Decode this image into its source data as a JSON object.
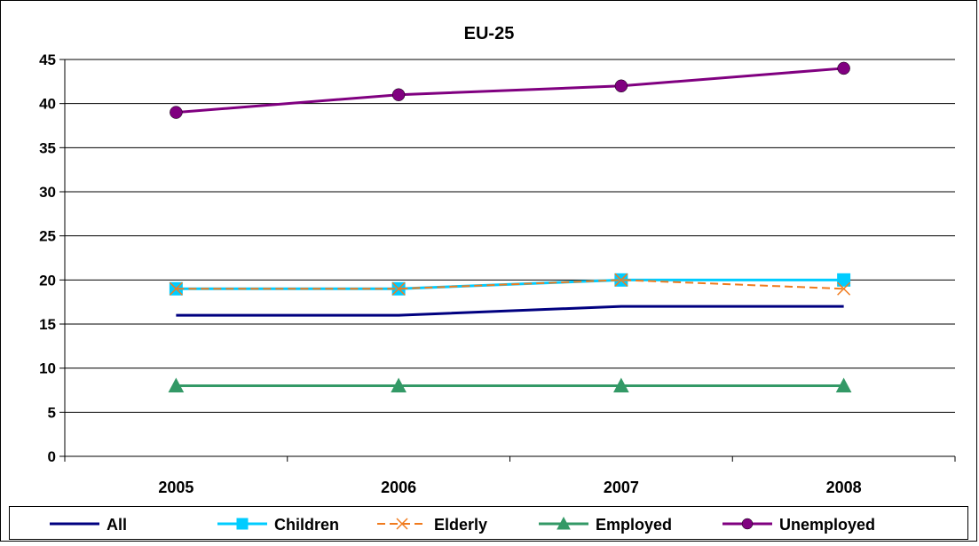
{
  "chart_data": {
    "type": "line",
    "title": "EU-25",
    "xlabel": "",
    "ylabel": "",
    "categories": [
      "2005",
      "2006",
      "2007",
      "2008"
    ],
    "ylim": [
      0,
      45
    ],
    "yticks": [
      0,
      5,
      10,
      15,
      20,
      25,
      30,
      35,
      40,
      45
    ],
    "grid": true,
    "legend_position": "bottom",
    "series": [
      {
        "name": "All",
        "values": [
          16,
          16,
          17,
          17
        ],
        "color": "#000080",
        "marker": "none",
        "dash": "solid"
      },
      {
        "name": "Children",
        "values": [
          19,
          19,
          20,
          20
        ],
        "color": "#00ccff",
        "marker": "square",
        "dash": "solid"
      },
      {
        "name": "Elderly",
        "values": [
          19,
          19,
          20,
          19
        ],
        "color": "#f07b1e",
        "marker": "x",
        "dash": "dashed"
      },
      {
        "name": "Employed",
        "values": [
          8,
          8,
          8,
          8
        ],
        "color": "#339966",
        "marker": "triangle",
        "dash": "solid"
      },
      {
        "name": "Unemployed",
        "values": [
          39,
          41,
          42,
          44
        ],
        "color": "#800080",
        "marker": "circle",
        "dash": "solid"
      }
    ]
  }
}
